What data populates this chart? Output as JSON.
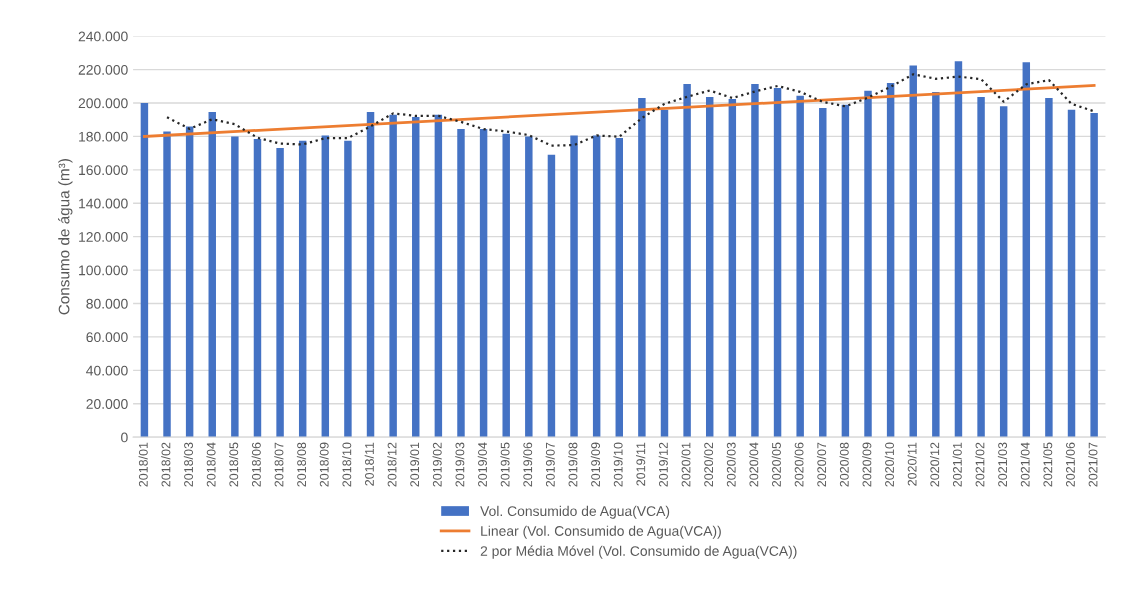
{
  "chart_data": {
    "type": "bar",
    "ylabel": "Consumo de água (m³)",
    "categories": [
      "2018/01",
      "2018/02",
      "2018/03",
      "2018/04",
      "2018/05",
      "2018/06",
      "2018/07",
      "2018/08",
      "2018/09",
      "2018/10",
      "2018/11",
      "2018/12",
      "2019/01",
      "2019/02",
      "2019/03",
      "2019/04",
      "2019/05",
      "2019/06",
      "2019/07",
      "2019/08",
      "2019/09",
      "2019/10",
      "2019/11",
      "2019/12",
      "2020/01",
      "2020/02",
      "2020/03",
      "2020/04",
      "2020/05",
      "2020/06",
      "2020/07",
      "2020/08",
      "2020/09",
      "2020/10",
      "2020/11",
      "2020/12",
      "2021/01",
      "2021/02",
      "2021/03",
      "2021/04",
      "2021/05",
      "2021/06",
      "2021/07"
    ],
    "series": [
      {
        "name": "Vol. Consumido de Agua(VCA)",
        "color": "#4472c4",
        "values": [
          200000,
          183000,
          186000,
          194600,
          180000,
          178400,
          173000,
          177400,
          180600,
          177400,
          194600,
          193000,
          191600,
          193000,
          184400,
          184400,
          181600,
          180000,
          169000,
          180600,
          180600,
          179000,
          203000,
          196000,
          211400,
          203600,
          202400,
          211400,
          209000,
          204400,
          197000,
          199000,
          207400,
          212000,
          222400,
          206600,
          225000,
          203600,
          198000,
          224400,
          203000,
          196000,
          194000
        ]
      },
      {
        "name": "Linear (Vol. Consumido de Agua(VCA))",
        "type": "line",
        "color": "#ed7d31",
        "line_style": "solid",
        "x": [
          "2018/01",
          "2021/07"
        ],
        "values": [
          180000,
          210500
        ]
      },
      {
        "name": "2 por Média Móvel (Vol. Consumido de Agua(VCA))",
        "type": "line",
        "color": "#262626",
        "line_style": "dotted",
        "values": [
          null,
          191500,
          184500,
          190300,
          187300,
          179200,
          175700,
          175200,
          179000,
          179000,
          186000,
          193800,
          192300,
          192300,
          188700,
          184400,
          183000,
          180800,
          174500,
          174800,
          180600,
          179800,
          191000,
          199500,
          203700,
          207500,
          203000,
          206900,
          210200,
          206700,
          200700,
          198000,
          203200,
          209700,
          217200,
          214500,
          215800,
          214300,
          200800,
          211200,
          213700,
          199500,
          195000
        ]
      }
    ],
    "ylim": [
      0,
      240000
    ],
    "yticks": [
      {
        "value": 0,
        "label": "0"
      },
      {
        "value": 20000,
        "label": "20.000"
      },
      {
        "value": 40000,
        "label": "40.000"
      },
      {
        "value": 60000,
        "label": "60.000"
      },
      {
        "value": 80000,
        "label": "80.000"
      },
      {
        "value": 100000,
        "label": "100.000"
      },
      {
        "value": 120000,
        "label": "120.000"
      },
      {
        "value": 140000,
        "label": "140.000"
      },
      {
        "value": 160000,
        "label": "160.000"
      },
      {
        "value": 180000,
        "label": "180.000"
      },
      {
        "value": 200000,
        "label": "200.000"
      },
      {
        "value": 220000,
        "label": "220.000"
      },
      {
        "value": 240000,
        "label": "240.000"
      }
    ],
    "grid": "y",
    "legend": "bottom"
  }
}
